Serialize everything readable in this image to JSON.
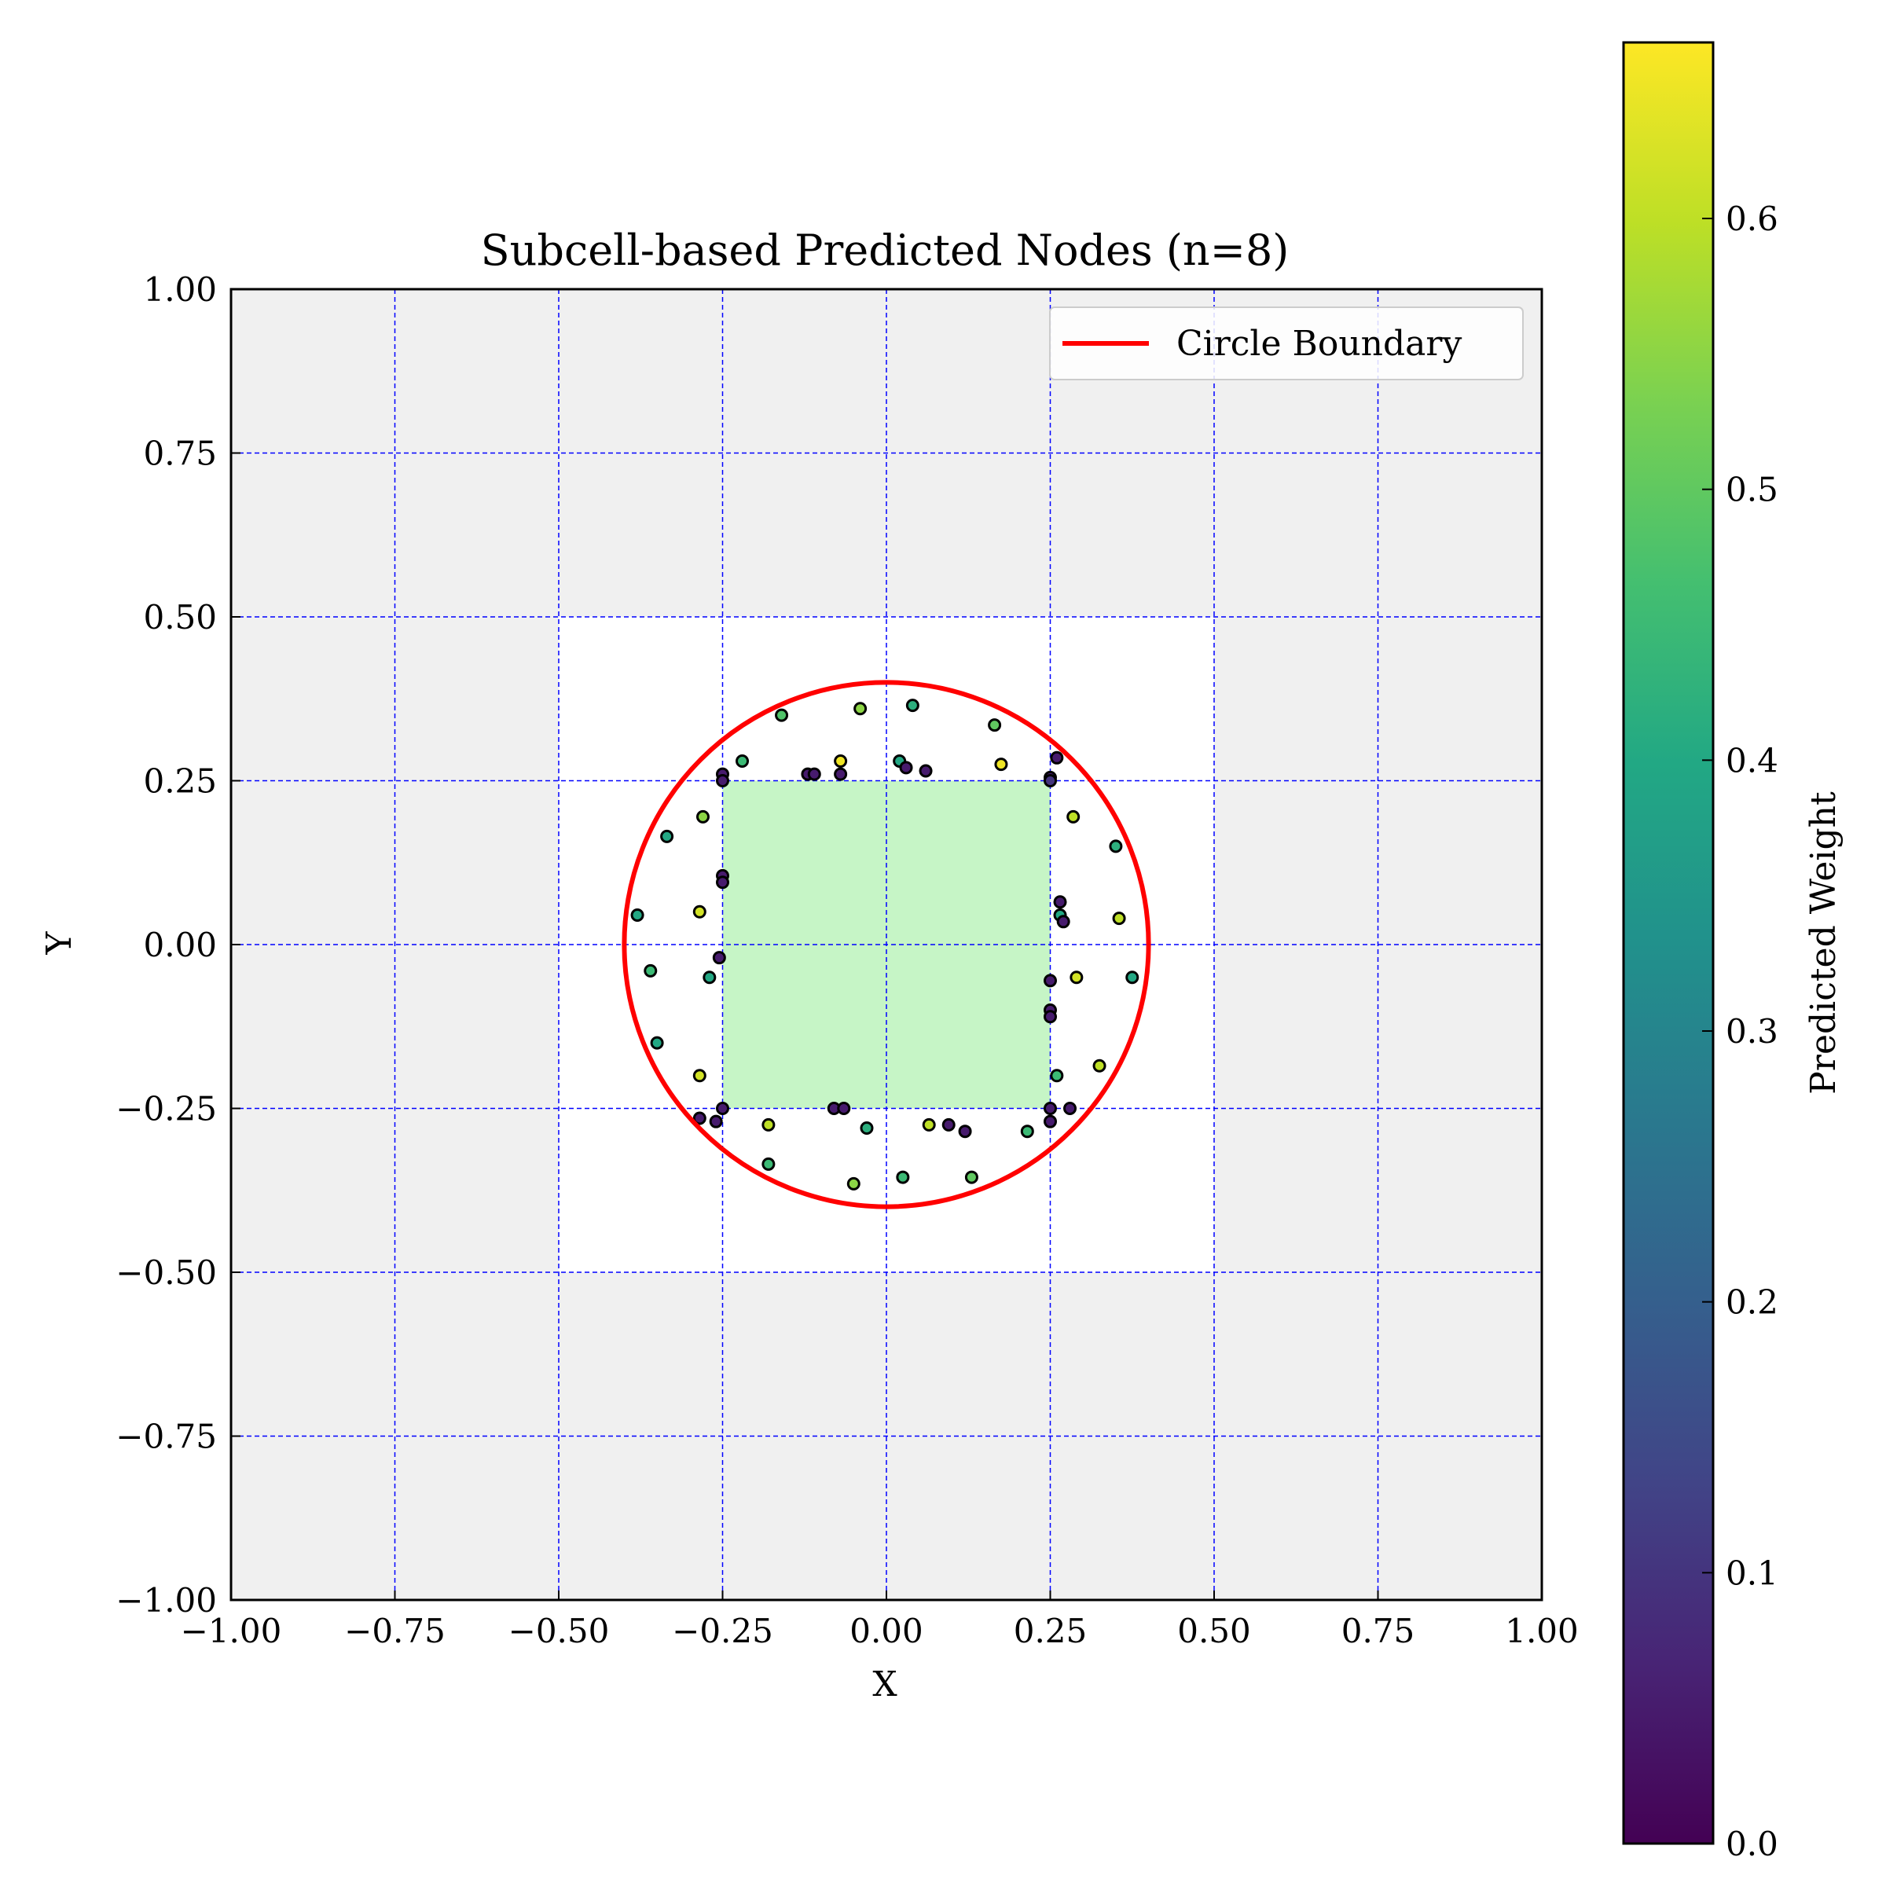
{
  "chart_data": {
    "type": "scatter",
    "title": "Subcell-based Predicted Nodes (n=8)",
    "xlabel": "X",
    "ylabel": "Y",
    "xlim": [
      -1.0,
      1.0
    ],
    "ylim": [
      -1.0,
      1.0
    ],
    "x_ticks": [
      -1.0,
      -0.75,
      -0.5,
      -0.25,
      0.0,
      0.25,
      0.5,
      0.75,
      1.0
    ],
    "y_ticks": [
      -1.0,
      -0.75,
      -0.5,
      -0.25,
      0.0,
      0.25,
      0.5,
      0.75,
      1.0
    ],
    "x_tick_labels": [
      "−1.00",
      "−0.75",
      "−0.50",
      "−0.25",
      "0.00",
      "0.25",
      "0.50",
      "0.75",
      "1.00"
    ],
    "y_tick_labels": [
      "−1.00",
      "−0.75",
      "−0.50",
      "−0.25",
      "0.00",
      "0.25",
      "0.50",
      "0.75",
      "1.00"
    ],
    "grid": true,
    "legend": {
      "placement": "top-right",
      "entries": [
        "Circle Boundary"
      ]
    },
    "circle": {
      "center": [
        0.0,
        0.0
      ],
      "radius": 0.4,
      "color": "#ff0000"
    },
    "cell_colors": {
      "outside": "#f0f0f0",
      "cut": "#ffffff",
      "inside": "#c6f5c6"
    },
    "inside_region": {
      "x": [
        -0.25,
        0.25
      ],
      "y": [
        -0.25,
        0.25
      ]
    },
    "cut_region": {
      "x": [
        -0.5,
        0.5
      ],
      "y": [
        -0.5,
        0.5
      ]
    },
    "grid_color": "#0000ff",
    "circle_color": "#ff0000",
    "colorbar": {
      "label": "Predicted Weight",
      "range": [
        0.0,
        0.665
      ],
      "ticks": [
        0.0,
        0.1,
        0.2,
        0.3,
        0.4,
        0.5,
        0.6
      ],
      "tick_labels": [
        "0.0",
        "0.1",
        "0.2",
        "0.3",
        "0.4",
        "0.5",
        "0.6"
      ],
      "colormap": "viridis"
    },
    "points": [
      {
        "x": -0.16,
        "y": 0.35,
        "w": 0.48
      },
      {
        "x": -0.04,
        "y": 0.36,
        "w": 0.55
      },
      {
        "x": 0.04,
        "y": 0.365,
        "w": 0.42
      },
      {
        "x": 0.165,
        "y": 0.335,
        "w": 0.5
      },
      {
        "x": -0.22,
        "y": 0.28,
        "w": 0.45
      },
      {
        "x": -0.07,
        "y": 0.28,
        "w": 0.65
      },
      {
        "x": 0.02,
        "y": 0.28,
        "w": 0.4
      },
      {
        "x": 0.03,
        "y": 0.27,
        "w": 0.05
      },
      {
        "x": 0.06,
        "y": 0.265,
        "w": 0.05
      },
      {
        "x": 0.175,
        "y": 0.275,
        "w": 0.65
      },
      {
        "x": -0.12,
        "y": 0.26,
        "w": 0.05
      },
      {
        "x": -0.11,
        "y": 0.26,
        "w": 0.05
      },
      {
        "x": -0.07,
        "y": 0.26,
        "w": 0.05
      },
      {
        "x": 0.26,
        "y": 0.285,
        "w": 0.05
      },
      {
        "x": -0.25,
        "y": 0.26,
        "w": 0.05
      },
      {
        "x": -0.25,
        "y": 0.25,
        "w": 0.05
      },
      {
        "x": 0.25,
        "y": 0.255,
        "w": 0.05
      },
      {
        "x": 0.25,
        "y": 0.25,
        "w": 0.1
      },
      {
        "x": -0.28,
        "y": 0.195,
        "w": 0.55
      },
      {
        "x": 0.285,
        "y": 0.195,
        "w": 0.6
      },
      {
        "x": -0.335,
        "y": 0.165,
        "w": 0.4
      },
      {
        "x": 0.35,
        "y": 0.15,
        "w": 0.42
      },
      {
        "x": -0.25,
        "y": 0.105,
        "w": 0.05
      },
      {
        "x": -0.25,
        "y": 0.095,
        "w": 0.05
      },
      {
        "x": 0.265,
        "y": 0.065,
        "w": 0.05
      },
      {
        "x": 0.265,
        "y": 0.045,
        "w": 0.4
      },
      {
        "x": 0.27,
        "y": 0.035,
        "w": 0.05
      },
      {
        "x": -0.38,
        "y": 0.045,
        "w": 0.4
      },
      {
        "x": -0.285,
        "y": 0.05,
        "w": 0.62
      },
      {
        "x": 0.355,
        "y": 0.04,
        "w": 0.6
      },
      {
        "x": -0.255,
        "y": -0.02,
        "w": 0.05
      },
      {
        "x": -0.36,
        "y": -0.04,
        "w": 0.45
      },
      {
        "x": -0.27,
        "y": -0.05,
        "w": 0.4
      },
      {
        "x": 0.29,
        "y": -0.05,
        "w": 0.62
      },
      {
        "x": 0.375,
        "y": -0.05,
        "w": 0.4
      },
      {
        "x": 0.25,
        "y": -0.055,
        "w": 0.05
      },
      {
        "x": 0.25,
        "y": -0.1,
        "w": 0.05
      },
      {
        "x": 0.25,
        "y": -0.11,
        "w": 0.05
      },
      {
        "x": -0.35,
        "y": -0.15,
        "w": 0.4
      },
      {
        "x": 0.325,
        "y": -0.185,
        "w": 0.6
      },
      {
        "x": -0.285,
        "y": -0.2,
        "w": 0.62
      },
      {
        "x": 0.26,
        "y": -0.2,
        "w": 0.45
      },
      {
        "x": -0.25,
        "y": -0.25,
        "w": 0.05
      },
      {
        "x": 0.25,
        "y": -0.25,
        "w": 0.05
      },
      {
        "x": 0.28,
        "y": -0.25,
        "w": 0.05
      },
      {
        "x": -0.285,
        "y": -0.265,
        "w": 0.05
      },
      {
        "x": -0.26,
        "y": -0.27,
        "w": 0.05
      },
      {
        "x": -0.08,
        "y": -0.25,
        "w": 0.05
      },
      {
        "x": -0.065,
        "y": -0.25,
        "w": 0.05
      },
      {
        "x": 0.25,
        "y": -0.27,
        "w": 0.05
      },
      {
        "x": -0.18,
        "y": -0.275,
        "w": 0.6
      },
      {
        "x": 0.065,
        "y": -0.275,
        "w": 0.6
      },
      {
        "x": 0.095,
        "y": -0.275,
        "w": 0.05
      },
      {
        "x": -0.03,
        "y": -0.28,
        "w": 0.42
      },
      {
        "x": 0.12,
        "y": -0.285,
        "w": 0.05
      },
      {
        "x": 0.215,
        "y": -0.285,
        "w": 0.45
      },
      {
        "x": -0.18,
        "y": -0.335,
        "w": 0.45
      },
      {
        "x": 0.025,
        "y": -0.355,
        "w": 0.45
      },
      {
        "x": 0.13,
        "y": -0.355,
        "w": 0.5
      },
      {
        "x": -0.05,
        "y": -0.365,
        "w": 0.55
      }
    ]
  }
}
